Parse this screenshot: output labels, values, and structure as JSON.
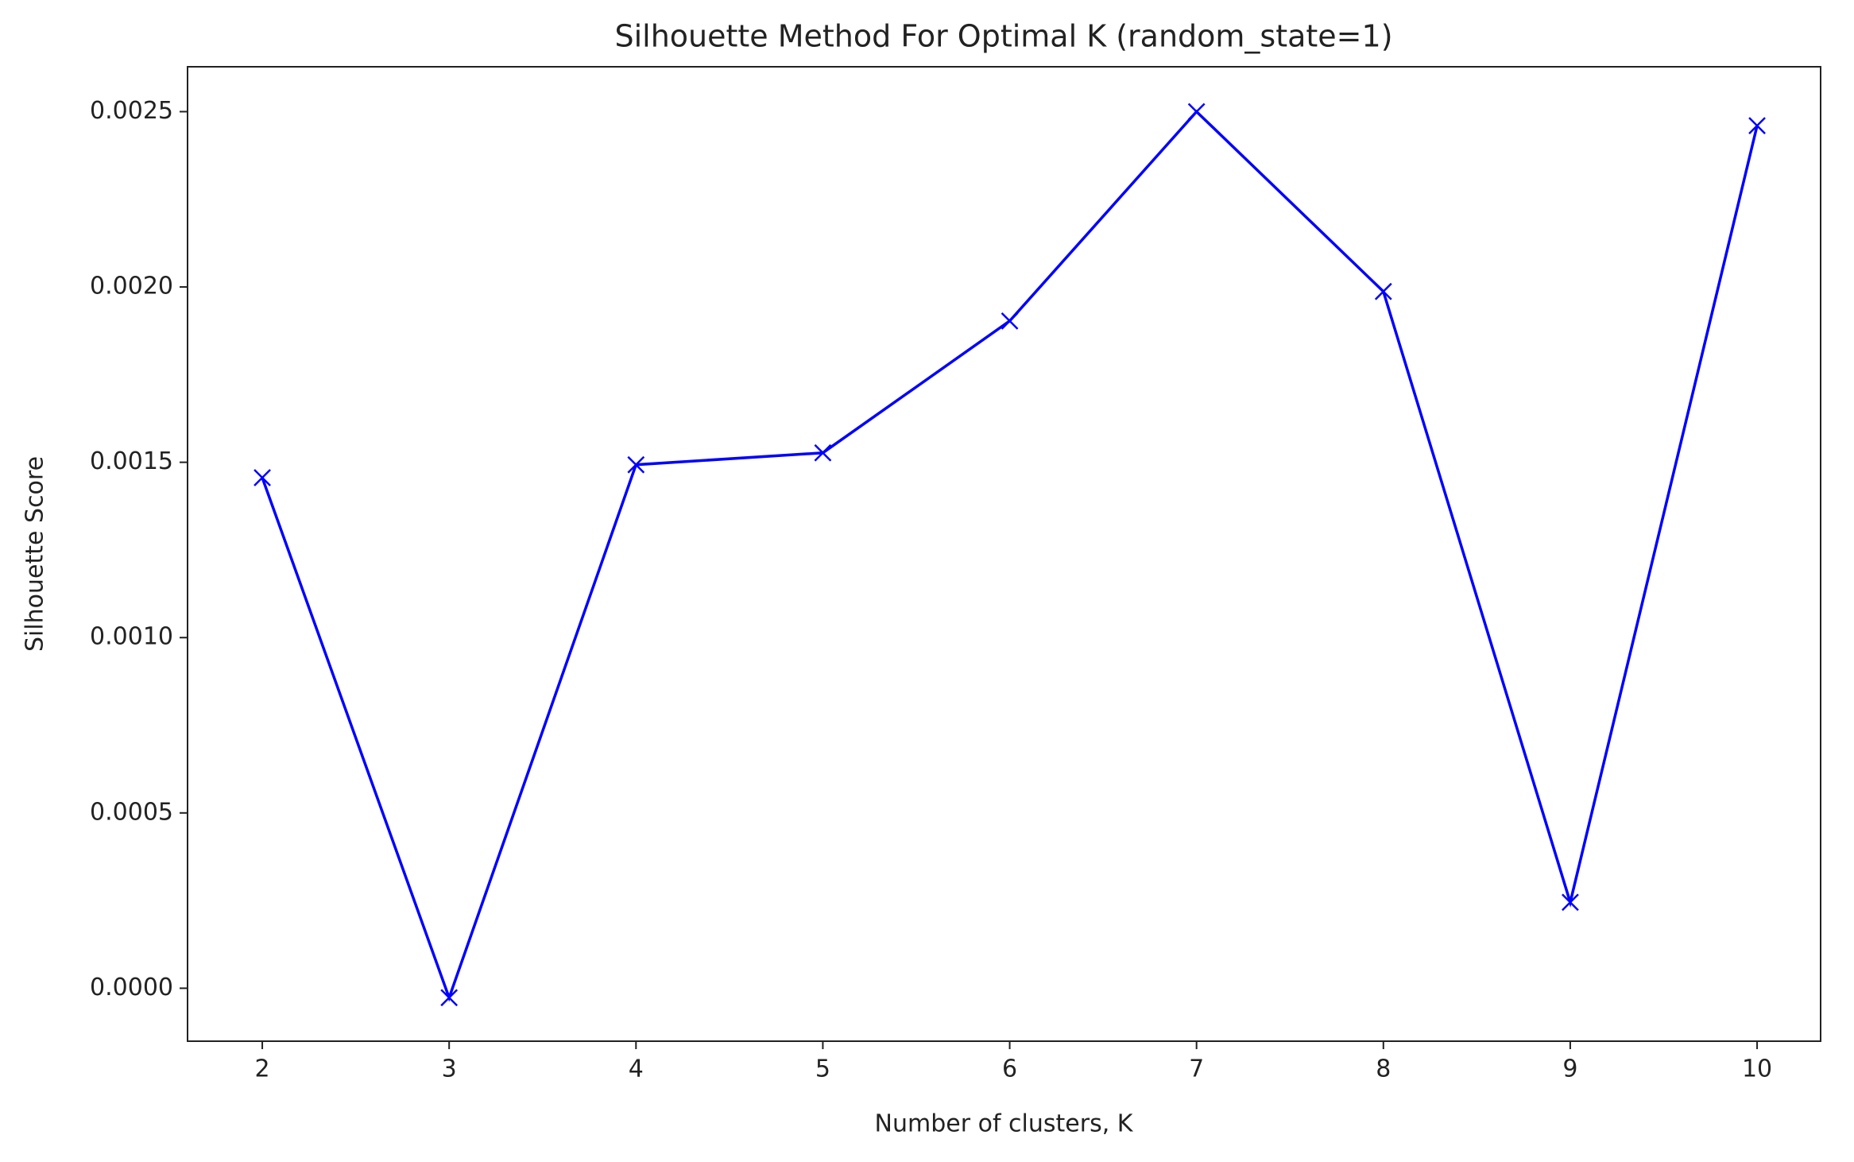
{
  "chart_data": {
    "type": "line",
    "title": "Silhouette Method For Optimal K (random_state=1)",
    "x_label": "Number of clusters, K",
    "y_label": "Silhouette Score",
    "x": [
      2,
      3,
      4,
      5,
      6,
      7,
      8,
      9,
      10
    ],
    "values": [
      0.001456,
      -2.7e-05,
      0.001493,
      0.001527,
      0.001903,
      0.0025,
      0.001987,
      0.000245,
      0.00246
    ],
    "color": "#0000ff",
    "marker": "x",
    "xlim": [
      1.6,
      10.34
    ],
    "xticks": [
      2,
      3,
      4,
      5,
      6,
      7,
      8,
      9,
      10
    ],
    "ylim": [
      -0.000151,
      0.002628
    ],
    "yticks": [
      {
        "value": 0,
        "label": "0.0000"
      },
      {
        "value": 0.0005,
        "label": "0.0005"
      },
      {
        "value": 0.001,
        "label": "0.0010"
      },
      {
        "value": 0.0015,
        "label": "0.0015"
      },
      {
        "value": 0.002,
        "label": "0.0020"
      },
      {
        "value": 0.0025,
        "label": "0.0025"
      }
    ],
    "grid": false
  }
}
